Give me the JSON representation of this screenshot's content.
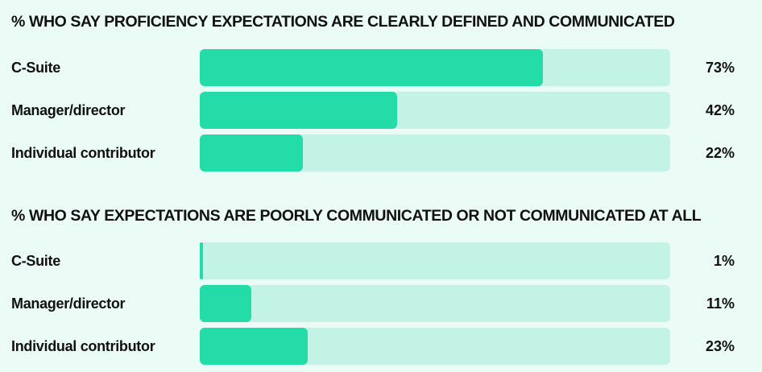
{
  "chart_data": [
    {
      "type": "bar",
      "orientation": "horizontal",
      "title": "% WHO SAY PROFICIENCY EXPECTATIONS ARE CLEARLY DEFINED AND COMMUNICATED",
      "categories": [
        "C-Suite",
        "Manager/director",
        "Individual contributor"
      ],
      "values": [
        73,
        42,
        22
      ],
      "value_labels": [
        "73%",
        "42%",
        "22%"
      ],
      "xlim": [
        0,
        100
      ],
      "grid": false
    },
    {
      "type": "bar",
      "orientation": "horizontal",
      "title": "% WHO SAY EXPECTATIONS ARE POORLY COMMUNICATED OR NOT COMMUNICATED AT ALL",
      "categories": [
        "C-Suite",
        "Manager/director",
        "Individual contributor"
      ],
      "values": [
        1,
        11,
        23
      ],
      "value_labels": [
        "1%",
        "11%",
        "23%"
      ],
      "xlim": [
        0,
        100
      ],
      "grid": false
    }
  ],
  "colors": {
    "background": "#ebfbf5",
    "track": "#c2f3e4",
    "fill": "#24dca8",
    "text": "#111111"
  }
}
